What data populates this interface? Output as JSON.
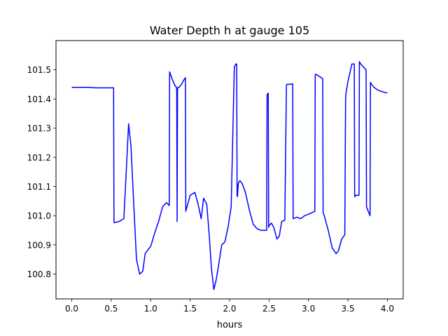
{
  "chart_data": {
    "type": "line",
    "title": "Water Depth h at gauge 105",
    "xlabel": "hours",
    "ylabel": "",
    "xlim": [
      -0.2,
      4.2
    ],
    "ylim": [
      100.715,
      101.6
    ],
    "xticks": [
      0.0,
      0.5,
      1.0,
      1.5,
      2.0,
      2.5,
      3.0,
      3.5,
      4.0
    ],
    "xtick_labels": [
      "0.0",
      "0.5",
      "1.0",
      "1.5",
      "2.0",
      "2.5",
      "3.0",
      "3.5",
      "4.0"
    ],
    "yticks": [
      100.8,
      100.9,
      101.0,
      101.1,
      101.2,
      101.3,
      101.4,
      101.5
    ],
    "ytick_labels": [
      "100.8",
      "100.9",
      "101.0",
      "101.1",
      "101.2",
      "101.3",
      "101.4",
      "101.5"
    ],
    "grid": false,
    "series": [
      {
        "color": "#0000ff",
        "x": [
          0.0,
          0.2,
          0.3,
          0.53,
          0.535,
          0.6,
          0.63,
          0.66,
          0.69,
          0.72,
          0.75,
          0.78,
          0.82,
          0.86,
          0.9,
          0.93,
          0.97,
          1.0,
          1.05,
          1.1,
          1.15,
          1.2,
          1.235,
          1.24,
          1.27,
          1.3,
          1.325,
          1.33,
          1.335,
          1.34,
          1.345,
          1.36,
          1.39,
          1.42,
          1.44,
          1.445,
          1.5,
          1.56,
          1.6,
          1.64,
          1.67,
          1.71,
          1.74,
          1.77,
          1.8,
          1.83,
          1.86,
          1.9,
          1.94,
          1.98,
          2.02,
          2.06,
          2.08,
          2.09,
          2.095,
          2.1,
          2.105,
          2.11,
          2.13,
          2.16,
          2.2,
          2.25,
          2.3,
          2.35,
          2.4,
          2.45,
          2.47,
          2.475,
          2.49,
          2.495,
          2.5,
          2.53,
          2.56,
          2.6,
          2.63,
          2.66,
          2.7,
          2.72,
          2.725,
          2.76,
          2.8,
          2.805,
          2.81,
          2.85,
          2.9,
          2.95,
          3.0,
          3.08,
          3.085,
          3.09,
          3.12,
          3.18,
          3.185,
          3.2,
          3.25,
          3.3,
          3.35,
          3.38,
          3.42,
          3.46,
          3.47,
          3.475,
          3.5,
          3.55,
          3.58,
          3.585,
          3.6,
          3.64,
          3.645,
          3.66,
          3.73,
          3.735,
          3.78,
          3.785,
          3.8,
          3.83,
          3.87,
          3.9,
          4.0
        ],
        "y": [
          101.44,
          101.44,
          101.438,
          101.438,
          100.976,
          100.98,
          100.985,
          100.99,
          101.15,
          101.315,
          101.24,
          101.07,
          100.85,
          100.8,
          100.81,
          100.87,
          100.885,
          100.895,
          100.94,
          100.98,
          101.03,
          101.045,
          101.035,
          101.493,
          101.47,
          101.45,
          101.44,
          101.43,
          100.98,
          101.43,
          101.44,
          101.44,
          101.45,
          101.465,
          101.473,
          101.015,
          101.07,
          101.08,
          101.04,
          100.99,
          101.06,
          101.04,
          100.94,
          100.82,
          100.747,
          100.78,
          100.83,
          100.9,
          100.91,
          100.96,
          101.03,
          101.51,
          101.52,
          101.52,
          101.07,
          101.065,
          101.09,
          101.11,
          101.12,
          101.11,
          101.08,
          101.02,
          100.97,
          100.955,
          100.95,
          100.95,
          100.95,
          101.415,
          101.42,
          100.96,
          100.965,
          100.975,
          100.96,
          100.92,
          100.93,
          100.98,
          100.985,
          101.445,
          101.45,
          101.45,
          101.452,
          100.99,
          100.99,
          100.995,
          100.99,
          101.0,
          101.005,
          101.015,
          101.48,
          101.485,
          101.48,
          101.47,
          101.01,
          101.0,
          100.95,
          100.89,
          100.87,
          100.88,
          100.92,
          100.935,
          101.4,
          101.42,
          101.46,
          101.52,
          101.52,
          101.065,
          101.07,
          101.07,
          101.528,
          101.52,
          101.5,
          101.03,
          101.0,
          101.457,
          101.45,
          101.44,
          101.432,
          101.428,
          101.42
        ]
      }
    ]
  }
}
